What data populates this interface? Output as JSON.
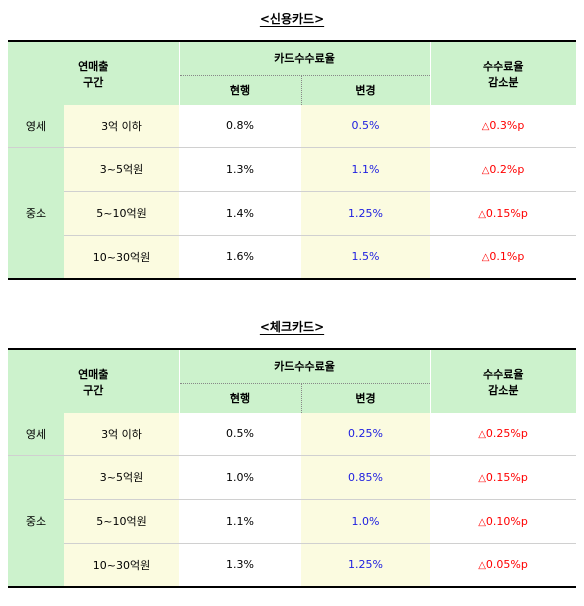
{
  "tables": [
    {
      "title": "<신용카드>",
      "header": {
        "segment_range": "연매출\n구간",
        "segment_range_line1": "연매출",
        "segment_range_line2": "구간",
        "card_fee_rate": "카드수수료율",
        "current": "현행",
        "changed": "변경",
        "reduction_line1": "수수료율",
        "reduction_line2": "감소분"
      },
      "groups": [
        {
          "segment": "영세",
          "rows": [
            {
              "range": "3억 이하",
              "current": "0.8%",
              "changed": "0.5%",
              "reduction": "0.3%p"
            }
          ]
        },
        {
          "segment": "중소",
          "rows": [
            {
              "range": "3~5억원",
              "current": "1.3%",
              "changed": "1.1%",
              "reduction": "0.2%p"
            },
            {
              "range": "5~10억원",
              "current": "1.4%",
              "changed": "1.25%",
              "reduction": "0.15%p"
            },
            {
              "range": "10~30억원",
              "current": "1.6%",
              "changed": "1.5%",
              "reduction": "0.1%p"
            }
          ]
        }
      ]
    },
    {
      "title": "<체크카드>",
      "header": {
        "segment_range_line1": "연매출",
        "segment_range_line2": "구간",
        "card_fee_rate": "카드수수료율",
        "current": "현행",
        "changed": "변경",
        "reduction_line1": "수수료율",
        "reduction_line2": "감소분"
      },
      "groups": [
        {
          "segment": "영세",
          "rows": [
            {
              "range": "3억 이하",
              "current": "0.5%",
              "changed": "0.25%",
              "reduction": "0.25%p"
            }
          ]
        },
        {
          "segment": "중소",
          "rows": [
            {
              "range": "3~5억원",
              "current": "1.0%",
              "changed": "0.85%",
              "reduction": "0.15%p"
            },
            {
              "range": "5~10억원",
              "current": "1.1%",
              "changed": "1.0%",
              "reduction": "0.10%p"
            },
            {
              "range": "10~30억원",
              "current": "1.3%",
              "changed": "1.25%",
              "reduction": "0.05%p"
            }
          ]
        }
      ]
    }
  ],
  "delta_symbol": "△",
  "colors": {
    "header_bg": "#ccf2cc",
    "range_bg": "#fbfbe0",
    "changed_text": "#2020e0",
    "reduction_text": "#ff0000"
  }
}
